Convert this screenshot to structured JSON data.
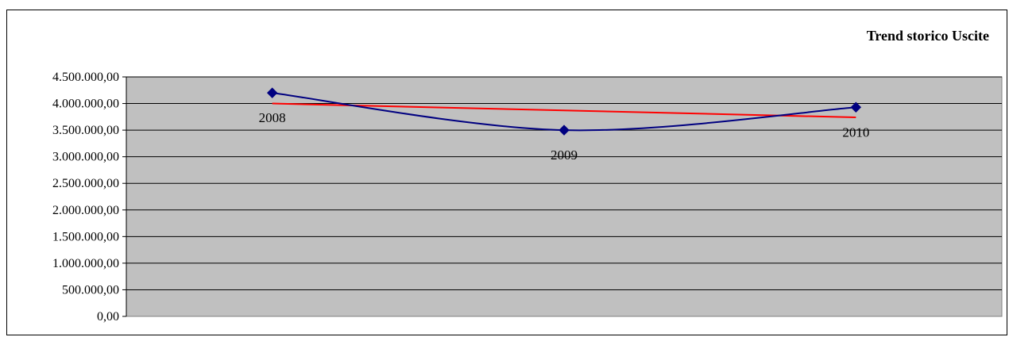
{
  "chart_data": {
    "type": "line",
    "title": "Trend storico Uscite",
    "categories": [
      "2008",
      "2009",
      "2010"
    ],
    "series": [
      {
        "values": [
          4200000,
          3500000,
          3930000
        ],
        "color": "#000080",
        "marker": "diamond",
        "smooth": true
      },
      {
        "values": [
          4000000,
          3870000,
          3740000
        ],
        "color": "#ff0000",
        "kind": "trendline"
      }
    ],
    "ylim": [
      0,
      4500000
    ],
    "yticks": [
      0,
      500000,
      1000000,
      1500000,
      2000000,
      2500000,
      3000000,
      3500000,
      4000000,
      4500000
    ],
    "ytick_labels": [
      "0,00",
      "500.000,00",
      "1.000.000,00",
      "1.500.000,00",
      "2.000.000,00",
      "2.500.000,00",
      "3.000.000,00",
      "3.500.000,00",
      "4.000.000,00",
      "4.500.000,00"
    ],
    "plot_background": "#c0c0c0",
    "grid": true,
    "legend": "none"
  }
}
